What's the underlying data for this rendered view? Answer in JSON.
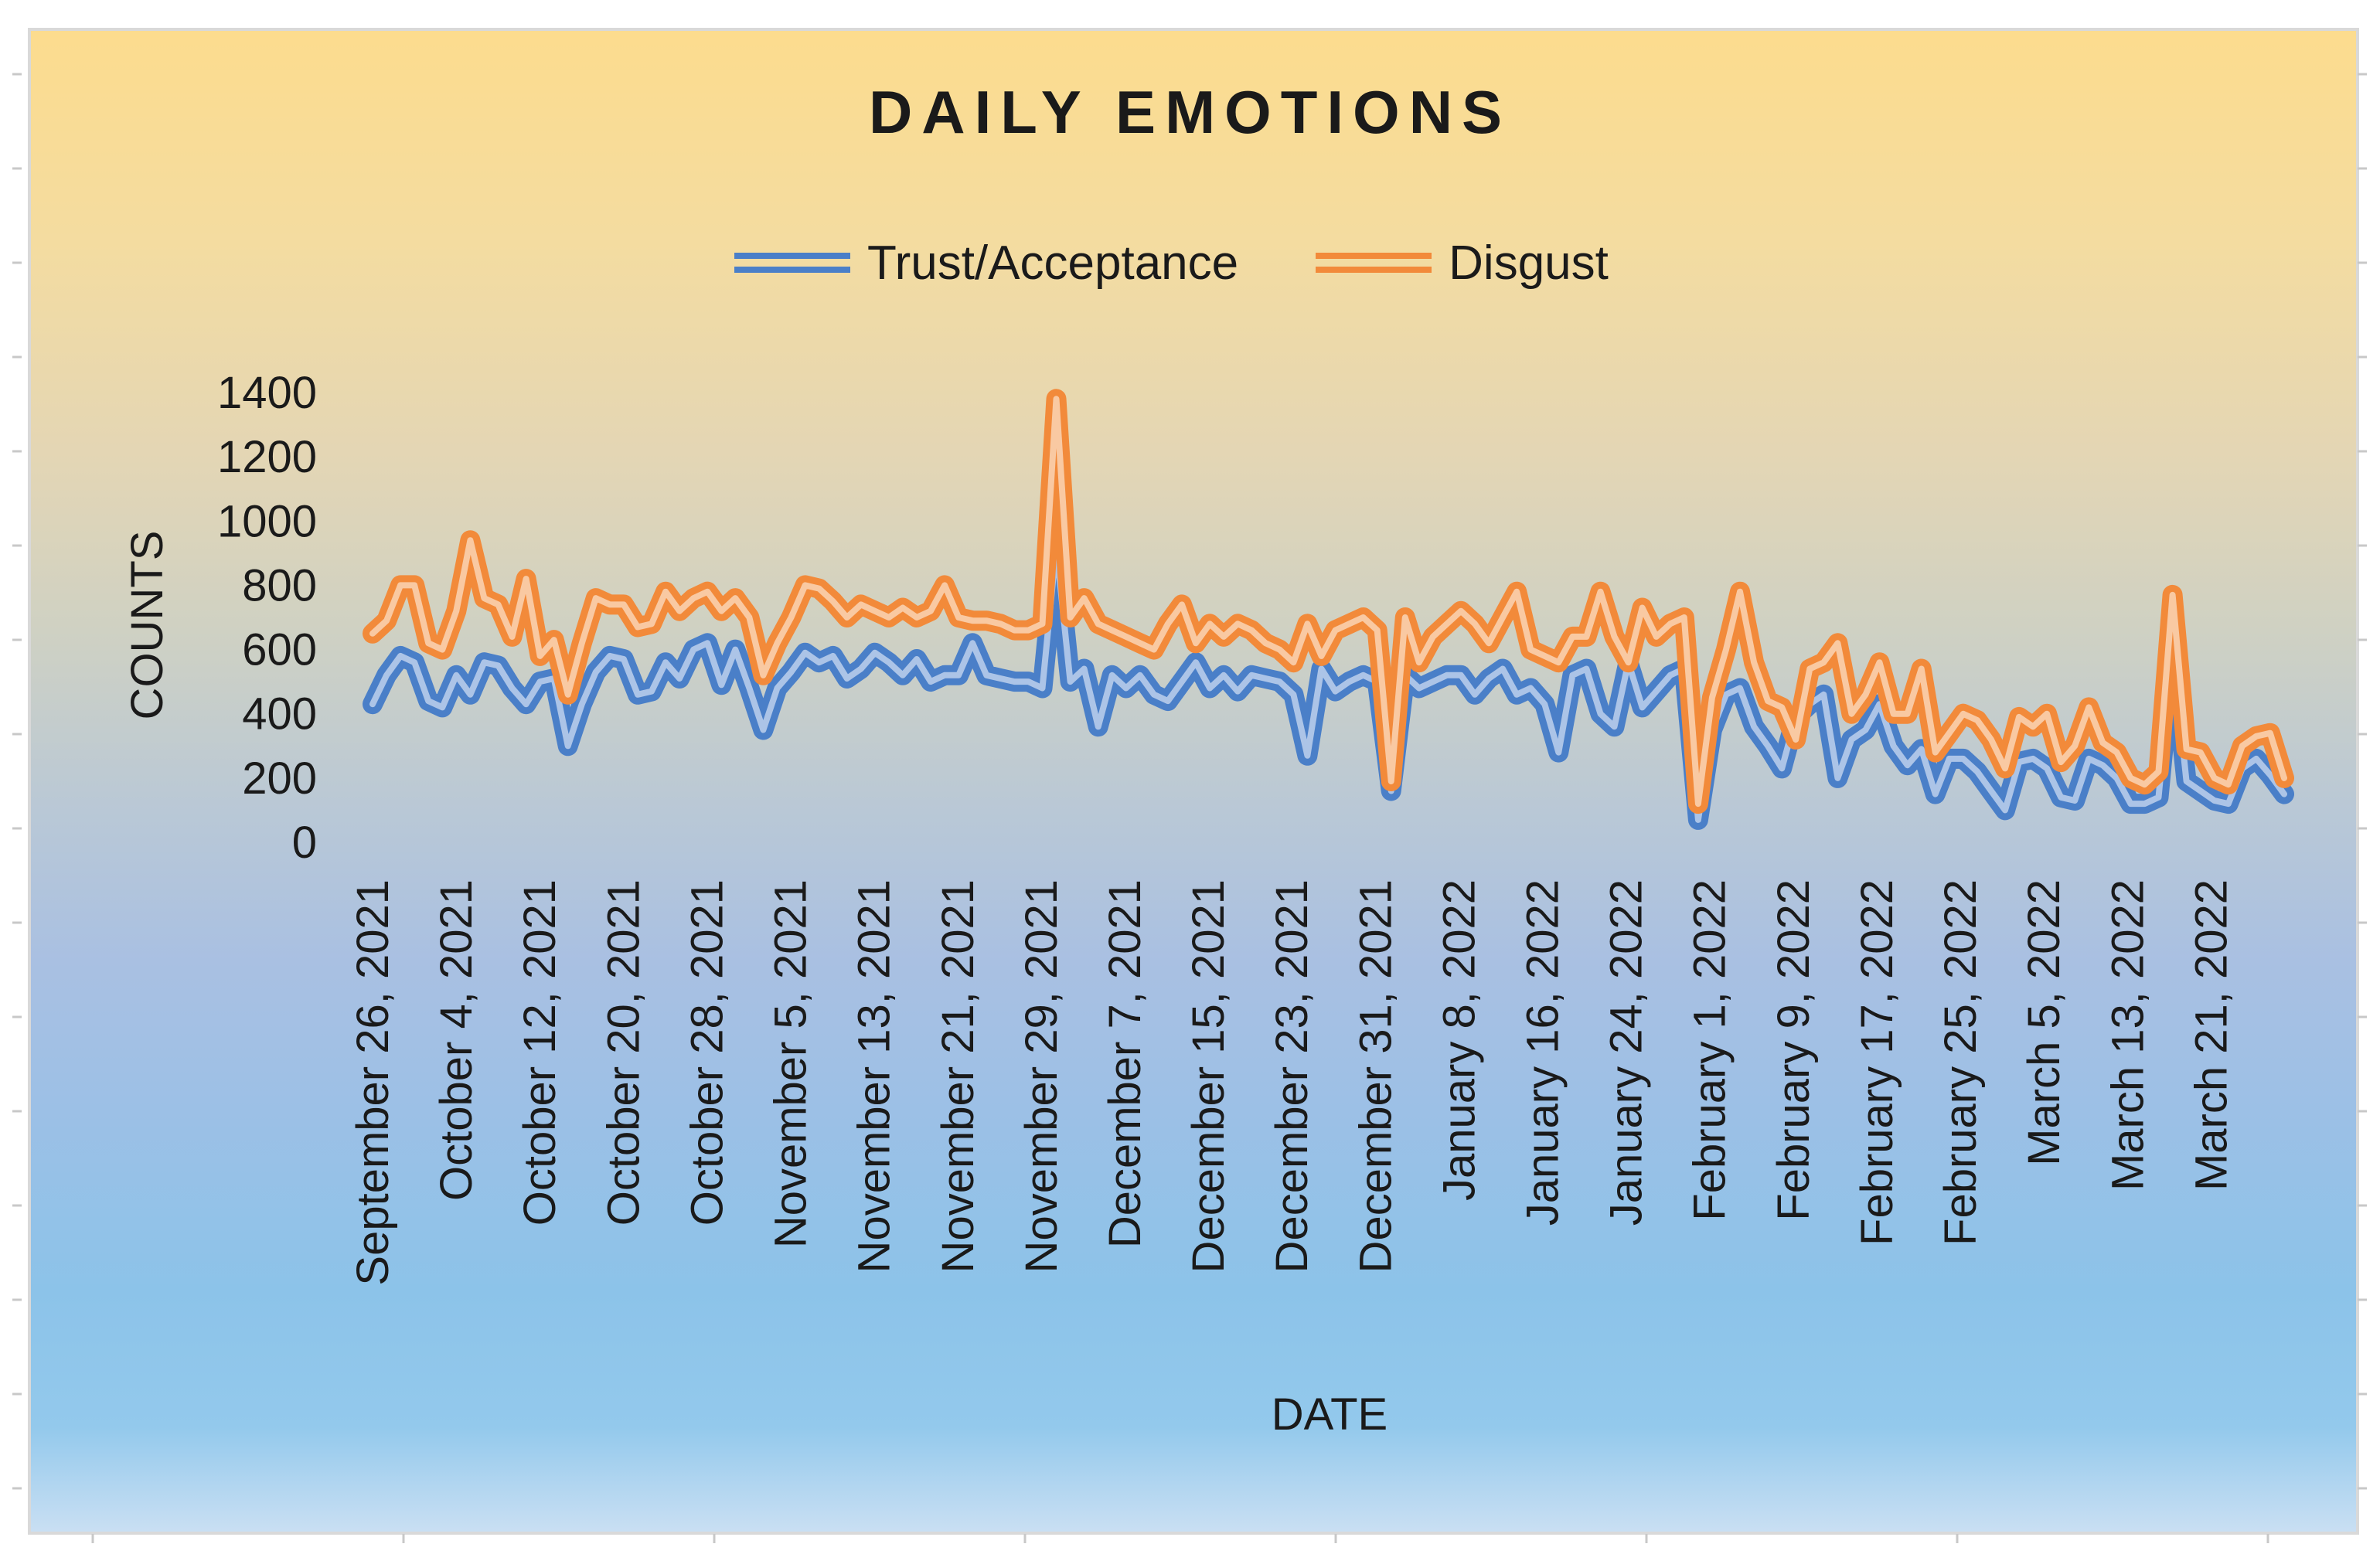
{
  "colors": {
    "trust": "#4a7fc8",
    "disgust": "#f28a3a",
    "frame": "#d9d9d9",
    "tick": "#c8c8c8"
  },
  "chart_data": {
    "type": "line",
    "title": "DAILY EMOTIONS",
    "xlabel": "DATE",
    "ylabel": "COUNTS",
    "ylim": [
      0,
      1400
    ],
    "yticks": [
      0,
      200,
      400,
      600,
      800,
      1000,
      1200,
      1400
    ],
    "grid": false,
    "legend_position": "top-center",
    "start_date": "September 26, 2021",
    "end_date": "March 28, 2022",
    "tick_labels": [
      "September 26, 2021",
      "October 4, 2021",
      "October 12, 2021",
      "October 20, 2021",
      "October 28, 2021",
      "November 5, 2021",
      "November 13, 2021",
      "November 21, 2021",
      "November 29, 2021",
      "December 7, 2021",
      "December 15, 2021",
      "December 23, 2021",
      "December 31, 2021",
      "January 8, 2022",
      "January 16, 2022",
      "January 24, 2022",
      "February 1, 2022",
      "February 9, 2022",
      "February 17, 2022",
      "February 25, 2022",
      "March 5, 2022",
      "March 13, 2022",
      "March 21, 2022"
    ],
    "series": [
      {
        "name": "Trust/Acceptance",
        "color": "#4a7fc8",
        "values": [
          430,
          520,
          580,
          560,
          440,
          420,
          520,
          460,
          560,
          550,
          480,
          430,
          500,
          510,
          300,
          430,
          530,
          580,
          570,
          460,
          470,
          560,
          510,
          600,
          620,
          490,
          600,
          480,
          350,
          480,
          530,
          590,
          560,
          580,
          510,
          540,
          590,
          560,
          520,
          570,
          500,
          520,
          520,
          620,
          520,
          510,
          500,
          500,
          480,
          920,
          500,
          540,
          360,
          520,
          480,
          520,
          460,
          440,
          500,
          560,
          480,
          520,
          470,
          520,
          510,
          500,
          460,
          270,
          540,
          470,
          500,
          520,
          500,
          160,
          520,
          480,
          500,
          520,
          520,
          460,
          510,
          540,
          460,
          480,
          430,
          280,
          520,
          540,
          400,
          360,
          560,
          420,
          470,
          520,
          540,
          70,
          350,
          460,
          480,
          360,
          300,
          230,
          390,
          430,
          460,
          200,
          320,
          350,
          430,
          300,
          240,
          290,
          150,
          260,
          260,
          220,
          160,
          100,
          250,
          260,
          230,
          140,
          130,
          260,
          240,
          200,
          120,
          120,
          140,
          600,
          190,
          160,
          130,
          120,
          230,
          260,
          210,
          150
        ]
      },
      {
        "name": "Disgust",
        "color": "#f28a3a",
        "values": [
          650,
          690,
          800,
          800,
          620,
          600,
          720,
          940,
          760,
          740,
          640,
          820,
          580,
          630,
          460,
          620,
          760,
          740,
          740,
          670,
          680,
          780,
          720,
          760,
          780,
          720,
          760,
          700,
          520,
          620,
          700,
          800,
          790,
          750,
          700,
          740,
          720,
          700,
          730,
          700,
          720,
          800,
          700,
          690,
          690,
          680,
          660,
          660,
          680,
          1380,
          700,
          760,
          680,
          660,
          640,
          620,
          600,
          680,
          740,
          620,
          680,
          640,
          680,
          660,
          620,
          600,
          560,
          680,
          580,
          660,
          680,
          700,
          660,
          190,
          700,
          560,
          640,
          680,
          720,
          680,
          620,
          700,
          780,
          600,
          580,
          560,
          640,
          640,
          780,
          640,
          560,
          730,
          640,
          680,
          700,
          120,
          450,
          600,
          780,
          560,
          440,
          420,
          320,
          540,
          560,
          620,
          400,
          460,
          560,
          400,
          400,
          540,
          280,
          340,
          400,
          380,
          320,
          230,
          390,
          360,
          400,
          250,
          300,
          420,
          310,
          280,
          200,
          180,
          220,
          770,
          290,
          280,
          200,
          180,
          300,
          330,
          340,
          200
        ]
      }
    ]
  }
}
